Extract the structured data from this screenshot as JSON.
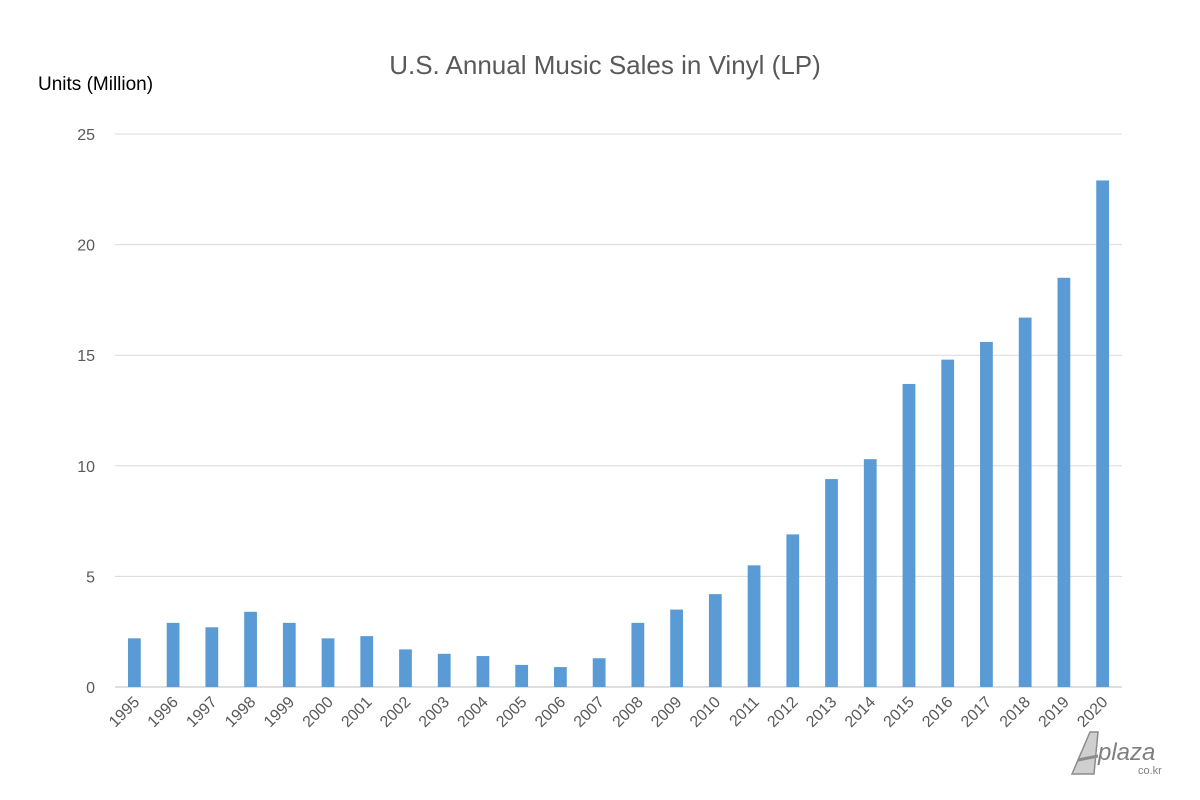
{
  "chart_data": {
    "type": "bar",
    "title": "U.S. Annual Music Sales in Vinyl (LP)",
    "ylabel": "Units (Million)",
    "xlabel": "",
    "ylim": [
      0,
      25
    ],
    "yticks": [
      0,
      5,
      10,
      15,
      20,
      25
    ],
    "grid": true,
    "bar_color": "#5b9bd5",
    "categories": [
      "1995",
      "1996",
      "1997",
      "1998",
      "1999",
      "2000",
      "2001",
      "2002",
      "2003",
      "2004",
      "2005",
      "2006",
      "2007",
      "2008",
      "2009",
      "2010",
      "2011",
      "2012",
      "2013",
      "2014",
      "2015",
      "2016",
      "2017",
      "2018",
      "2019",
      "2020"
    ],
    "values": [
      2.2,
      2.9,
      2.7,
      3.4,
      2.9,
      2.2,
      2.3,
      1.7,
      1.5,
      1.4,
      1.0,
      0.9,
      1.3,
      2.9,
      3.5,
      4.2,
      5.5,
      6.9,
      9.4,
      10.3,
      13.7,
      14.8,
      15.6,
      16.7,
      18.5,
      22.9
    ]
  },
  "watermark": {
    "text": "plaza",
    "subtext": "co.kr"
  }
}
